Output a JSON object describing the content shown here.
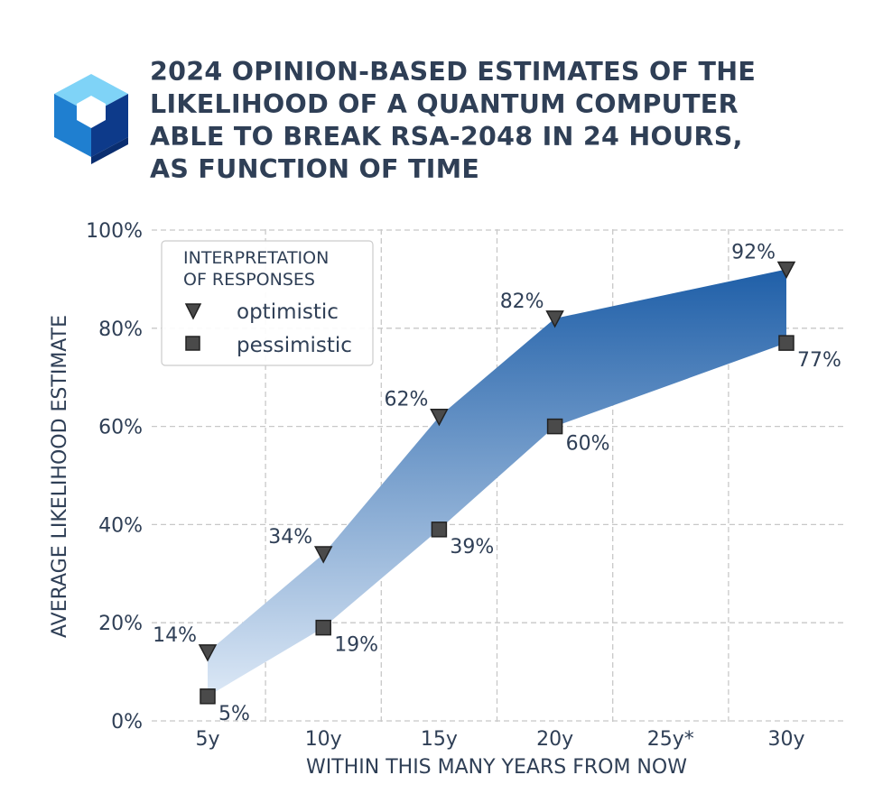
{
  "title_lines": [
    "2024 OPINION-BASED ESTIMATES OF THE",
    "LIKELIHOOD OF A QUANTUM COMPUTER",
    "ABLE TO BREAK RSA-2048 IN 24 HOURS,",
    "AS FUNCTION OF TIME"
  ],
  "logo_icon": "quantum-cube-logo",
  "colors": {
    "text": "#2f3f56",
    "band_top": "#1f5fa8",
    "band_bottom": "#dce8f6",
    "marker": "#4a4a4a",
    "grid": "#c8c8c8"
  },
  "chart_data": {
    "type": "scatter",
    "title": "2024 OPINION-BASED ESTIMATES OF THE LIKELIHOOD OF A QUANTUM COMPUTER ABLE TO BREAK RSA-2048 IN 24 HOURS, AS FUNCTION OF TIME",
    "xlabel": "WITHIN THIS MANY YEARS FROM NOW",
    "ylabel": "AVERAGE LIKELIHOOD ESTIMATE",
    "categories": [
      "5y",
      "10y",
      "15y",
      "20y",
      "25y*",
      "30y"
    ],
    "ylim": [
      0,
      100
    ],
    "y_ticks": [
      "0%",
      "20%",
      "40%",
      "60%",
      "80%",
      "100%"
    ],
    "grid": true,
    "legend": {
      "title": "INTERPRETATION OF RESPONSES",
      "title_lines": [
        "INTERPRETATION",
        "OF RESPONSES"
      ],
      "placement": "top-left"
    },
    "series": [
      {
        "name": "optimistic",
        "marker": "triangle-down",
        "x": [
          "5y",
          "10y",
          "15y",
          "20y",
          "30y"
        ],
        "values": [
          14,
          34,
          62,
          82,
          92
        ],
        "labels": [
          "14%",
          "34%",
          "62%",
          "82%",
          "92%"
        ]
      },
      {
        "name": "pessimistic",
        "marker": "square",
        "x": [
          "5y",
          "10y",
          "15y",
          "20y",
          "30y"
        ],
        "values": [
          5,
          19,
          39,
          60,
          77
        ],
        "labels": [
          "5%",
          "19%",
          "39%",
          "60%",
          "77%"
        ]
      }
    ]
  }
}
